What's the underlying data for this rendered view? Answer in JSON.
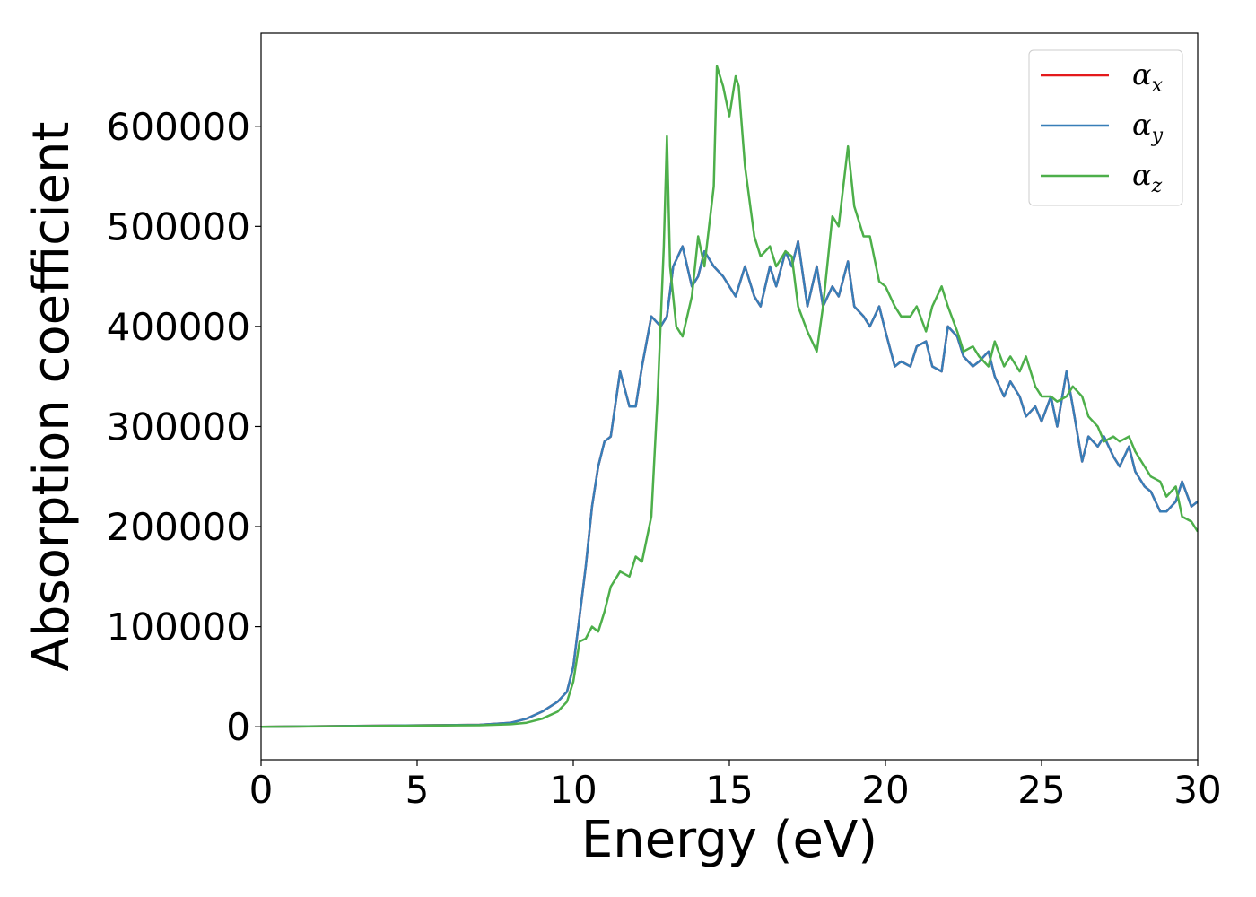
{
  "chart_data": {
    "type": "line",
    "title": "",
    "xlabel": "Energy (eV)",
    "ylabel": "Absorption coefficient",
    "xlim": [
      0,
      30
    ],
    "ylim": [
      -33000,
      693000
    ],
    "xticks": [
      0,
      5,
      10,
      15,
      20,
      25,
      30
    ],
    "yticks": [
      0,
      100000,
      200000,
      300000,
      400000,
      500000,
      600000
    ],
    "xtick_labels": [
      "0",
      "5",
      "10",
      "15",
      "20",
      "25",
      "30"
    ],
    "ytick_labels": [
      "0",
      "100000",
      "200000",
      "300000",
      "400000",
      "500000",
      "600000"
    ],
    "grid": false,
    "legend_position": "top-right",
    "series": [
      {
        "name": "αx",
        "base": "α",
        "sub": "x",
        "color": "#e41a1c",
        "x": [
          0,
          7,
          8,
          8.5,
          9,
          9.5,
          9.8,
          10,
          10.2,
          10.4,
          10.6,
          10.8,
          11,
          11.2,
          11.5,
          11.8,
          12,
          12.2,
          12.5,
          12.8,
          13,
          13.2,
          13.5,
          13.8,
          14,
          14.2,
          14.5,
          14.8,
          15,
          15.2,
          15.5,
          15.8,
          16,
          16.3,
          16.5,
          16.8,
          17,
          17.2,
          17.5,
          17.8,
          18,
          18.3,
          18.5,
          18.8,
          19,
          19.3,
          19.5,
          19.8,
          20,
          20.3,
          20.5,
          20.8,
          21,
          21.3,
          21.5,
          21.8,
          22,
          22.3,
          22.5,
          22.8,
          23,
          23.3,
          23.5,
          23.8,
          24,
          24.3,
          24.5,
          24.8,
          25,
          25.3,
          25.5,
          25.8,
          26,
          26.3,
          26.5,
          26.8,
          27,
          27.3,
          27.5,
          27.8,
          28,
          28.3,
          28.5,
          28.8,
          29,
          29.3,
          29.5,
          29.8,
          30
        ],
        "y": [
          0,
          2000,
          4000,
          8000,
          15000,
          25000,
          35000,
          60000,
          110000,
          160000,
          220000,
          260000,
          285000,
          290000,
          355000,
          320000,
          320000,
          360000,
          410000,
          400000,
          410000,
          460000,
          480000,
          440000,
          450000,
          475000,
          460000,
          450000,
          440000,
          430000,
          460000,
          430000,
          420000,
          460000,
          440000,
          475000,
          460000,
          485000,
          420000,
          460000,
          420000,
          440000,
          430000,
          465000,
          420000,
          410000,
          400000,
          420000,
          395000,
          360000,
          365000,
          360000,
          380000,
          385000,
          360000,
          355000,
          400000,
          390000,
          370000,
          360000,
          365000,
          375000,
          350000,
          330000,
          345000,
          330000,
          310000,
          320000,
          305000,
          330000,
          300000,
          355000,
          320000,
          265000,
          290000,
          280000,
          290000,
          270000,
          260000,
          280000,
          255000,
          240000,
          235000,
          215000,
          215000,
          225000,
          245000,
          220000,
          225000
        ]
      },
      {
        "name": "αy",
        "base": "α",
        "sub": "y",
        "color": "#377eb8",
        "x": [
          0,
          7,
          8,
          8.5,
          9,
          9.5,
          9.8,
          10,
          10.2,
          10.4,
          10.6,
          10.8,
          11,
          11.2,
          11.5,
          11.8,
          12,
          12.2,
          12.5,
          12.8,
          13,
          13.2,
          13.5,
          13.8,
          14,
          14.2,
          14.5,
          14.8,
          15,
          15.2,
          15.5,
          15.8,
          16,
          16.3,
          16.5,
          16.8,
          17,
          17.2,
          17.5,
          17.8,
          18,
          18.3,
          18.5,
          18.8,
          19,
          19.3,
          19.5,
          19.8,
          20,
          20.3,
          20.5,
          20.8,
          21,
          21.3,
          21.5,
          21.8,
          22,
          22.3,
          22.5,
          22.8,
          23,
          23.3,
          23.5,
          23.8,
          24,
          24.3,
          24.5,
          24.8,
          25,
          25.3,
          25.5,
          25.8,
          26,
          26.3,
          26.5,
          26.8,
          27,
          27.3,
          27.5,
          27.8,
          28,
          28.3,
          28.5,
          28.8,
          29,
          29.3,
          29.5,
          29.8,
          30
        ],
        "y": [
          0,
          2000,
          4000,
          8000,
          15000,
          25000,
          35000,
          60000,
          110000,
          160000,
          220000,
          260000,
          285000,
          290000,
          355000,
          320000,
          320000,
          360000,
          410000,
          400000,
          410000,
          460000,
          480000,
          440000,
          450000,
          475000,
          460000,
          450000,
          440000,
          430000,
          460000,
          430000,
          420000,
          460000,
          440000,
          475000,
          460000,
          485000,
          420000,
          460000,
          420000,
          440000,
          430000,
          465000,
          420000,
          410000,
          400000,
          420000,
          395000,
          360000,
          365000,
          360000,
          380000,
          385000,
          360000,
          355000,
          400000,
          390000,
          370000,
          360000,
          365000,
          375000,
          350000,
          330000,
          345000,
          330000,
          310000,
          320000,
          305000,
          330000,
          300000,
          355000,
          320000,
          265000,
          290000,
          280000,
          290000,
          270000,
          260000,
          280000,
          255000,
          240000,
          235000,
          215000,
          215000,
          225000,
          245000,
          220000,
          225000
        ]
      },
      {
        "name": "αz",
        "base": "α",
        "sub": "z",
        "color": "#4daf4a",
        "x": [
          0,
          7,
          8,
          8.5,
          9,
          9.5,
          9.8,
          10,
          10.2,
          10.4,
          10.6,
          10.8,
          11,
          11.2,
          11.5,
          11.8,
          12,
          12.2,
          12.5,
          12.7,
          12.9,
          13,
          13.1,
          13.3,
          13.5,
          13.8,
          14,
          14.2,
          14.5,
          14.6,
          14.8,
          15,
          15.2,
          15.3,
          15.5,
          15.8,
          16,
          16.3,
          16.5,
          16.8,
          17,
          17.2,
          17.5,
          17.8,
          18,
          18.3,
          18.5,
          18.8,
          19,
          19.3,
          19.5,
          19.8,
          20,
          20.3,
          20.5,
          20.8,
          21,
          21.3,
          21.5,
          21.8,
          22,
          22.3,
          22.5,
          22.8,
          23,
          23.3,
          23.5,
          23.8,
          24,
          24.3,
          24.5,
          24.8,
          25,
          25.3,
          25.5,
          25.8,
          26,
          26.3,
          26.5,
          26.8,
          27,
          27.3,
          27.5,
          27.8,
          28,
          28.3,
          28.5,
          28.8,
          29,
          29.3,
          29.5,
          29.8,
          30
        ],
        "y": [
          0,
          1500,
          2500,
          4000,
          8000,
          15000,
          25000,
          45000,
          85000,
          88000,
          100000,
          95000,
          115000,
          140000,
          155000,
          150000,
          170000,
          165000,
          210000,
          330000,
          480000,
          590000,
          460000,
          400000,
          390000,
          430000,
          490000,
          460000,
          540000,
          660000,
          640000,
          610000,
          650000,
          640000,
          560000,
          490000,
          470000,
          480000,
          460000,
          475000,
          470000,
          420000,
          395000,
          375000,
          420000,
          510000,
          500000,
          580000,
          520000,
          490000,
          490000,
          445000,
          440000,
          420000,
          410000,
          410000,
          420000,
          395000,
          420000,
          440000,
          420000,
          395000,
          375000,
          380000,
          370000,
          360000,
          385000,
          360000,
          370000,
          355000,
          370000,
          340000,
          330000,
          330000,
          325000,
          330000,
          340000,
          330000,
          310000,
          300000,
          285000,
          290000,
          285000,
          290000,
          275000,
          260000,
          250000,
          245000,
          230000,
          240000,
          210000,
          205000,
          195000
        ]
      }
    ]
  }
}
